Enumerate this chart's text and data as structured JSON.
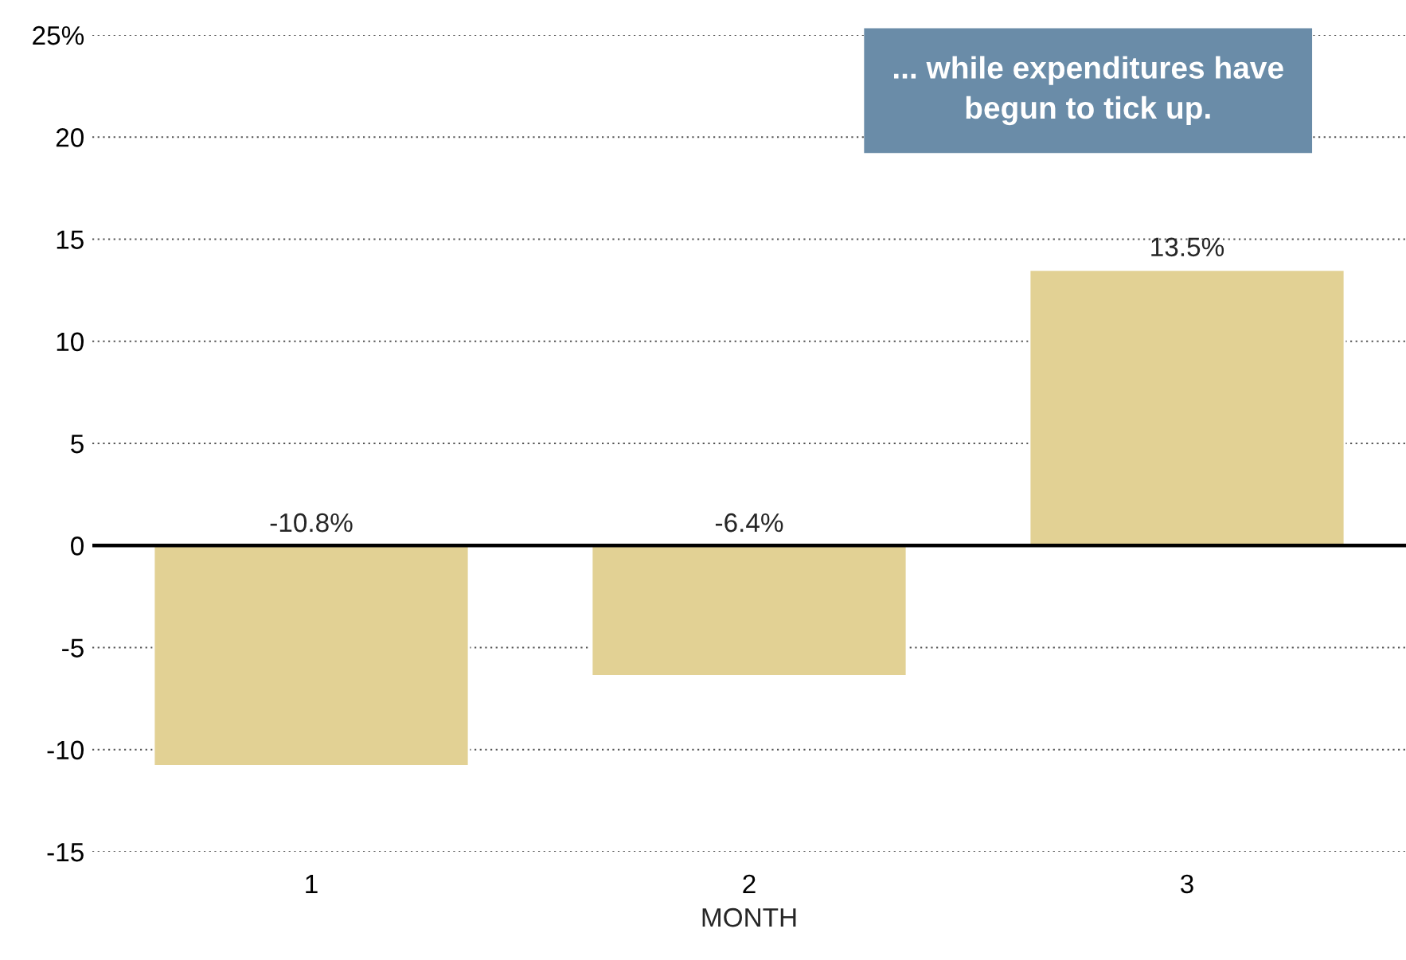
{
  "chart_data": {
    "type": "bar",
    "xlabel": "MONTH",
    "categories": [
      "1",
      "2",
      "3"
    ],
    "values": [
      -10.8,
      -6.4,
      13.5
    ],
    "value_labels": [
      "-10.8%",
      "-6.4%",
      "13.5%"
    ],
    "color": "#e2d194",
    "ylim": [
      -15,
      25
    ],
    "yticks": [
      -15,
      -10,
      -5,
      0,
      5,
      10,
      15,
      20,
      {
        "value": 25,
        "label": "25%"
      }
    ],
    "grid": "y",
    "ref_lines": [
      {
        "axis": "y",
        "value": 0,
        "color": "#000000"
      }
    ],
    "annotations": [
      "... while expenditures have\nbegun to tick up."
    ]
  }
}
